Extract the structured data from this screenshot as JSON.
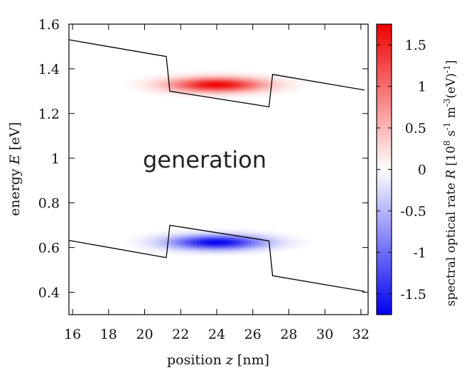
{
  "chart_data": {
    "type": "heatmap",
    "title": "",
    "xlabel_prefix": "position ",
    "xlabel_var": "z",
    "xlabel_suffix": " [nm]",
    "ylabel_prefix": "energy ",
    "ylabel_var": "E",
    "ylabel_suffix": " [eV]",
    "xlim": [
      15.8,
      32.4
    ],
    "ylim": [
      0.3,
      1.6
    ],
    "x_ticks": [
      16,
      18,
      20,
      22,
      24,
      26,
      28,
      30,
      32
    ],
    "x_tick_labels": [
      "16",
      "18",
      "20",
      "22",
      "24",
      "26",
      "28",
      "30",
      "32"
    ],
    "y_ticks": [
      0.4,
      0.6,
      0.8,
      1.0,
      1.2,
      1.4,
      1.6
    ],
    "y_tick_labels": [
      "0.4",
      "0.6",
      "0.8",
      "1",
      "1.2",
      "1.4",
      "1.6"
    ],
    "annotation": "generation",
    "colorbar": {
      "label_prefix": "spectral optical rate ",
      "label_var": "R",
      "label_units": " [10",
      "label_exp1": "8",
      "label_mid1": " s",
      "label_exp2": "-1",
      "label_mid2": " m",
      "label_exp3": "-3",
      "label_mid3": "(eV)",
      "label_exp4": "-1",
      "label_end": "]",
      "range": [
        -1.75,
        1.75
      ],
      "ticks": [
        1.5,
        1,
        0.5,
        0,
        -0.5,
        -1,
        -1.5
      ],
      "tick_labels": [
        "1.5",
        "1",
        "0.5",
        "0",
        "-0.5",
        "-1",
        "-1.5"
      ],
      "positive_color": "#ee0000",
      "negative_color": "#0000ee",
      "zero_color": "#ffffff"
    },
    "conduction_band_edge": {
      "name": "conduction band",
      "x": [
        15.8,
        21.2,
        21.4,
        26.9,
        27.1,
        32.2
      ],
      "y": [
        1.53,
        1.455,
        1.3,
        1.23,
        1.375,
        1.305
      ]
    },
    "valence_band_edge": {
      "name": "valence band",
      "x": [
        15.8,
        21.2,
        21.4,
        26.9,
        27.1,
        32.2
      ],
      "y": [
        0.632,
        0.555,
        0.7,
        0.63,
        0.474,
        0.404
      ]
    },
    "series": [
      {
        "name": "emission lobe (upper band)",
        "center_z": 24.0,
        "center_E": 1.33,
        "peak_R": 1.7,
        "width_z": 2.6,
        "width_E": 0.032
      },
      {
        "name": "absorption lobe (lower band)",
        "center_z": 24.0,
        "center_E": 0.625,
        "peak_R": -1.7,
        "width_z": 2.6,
        "width_E": 0.032
      }
    ]
  }
}
